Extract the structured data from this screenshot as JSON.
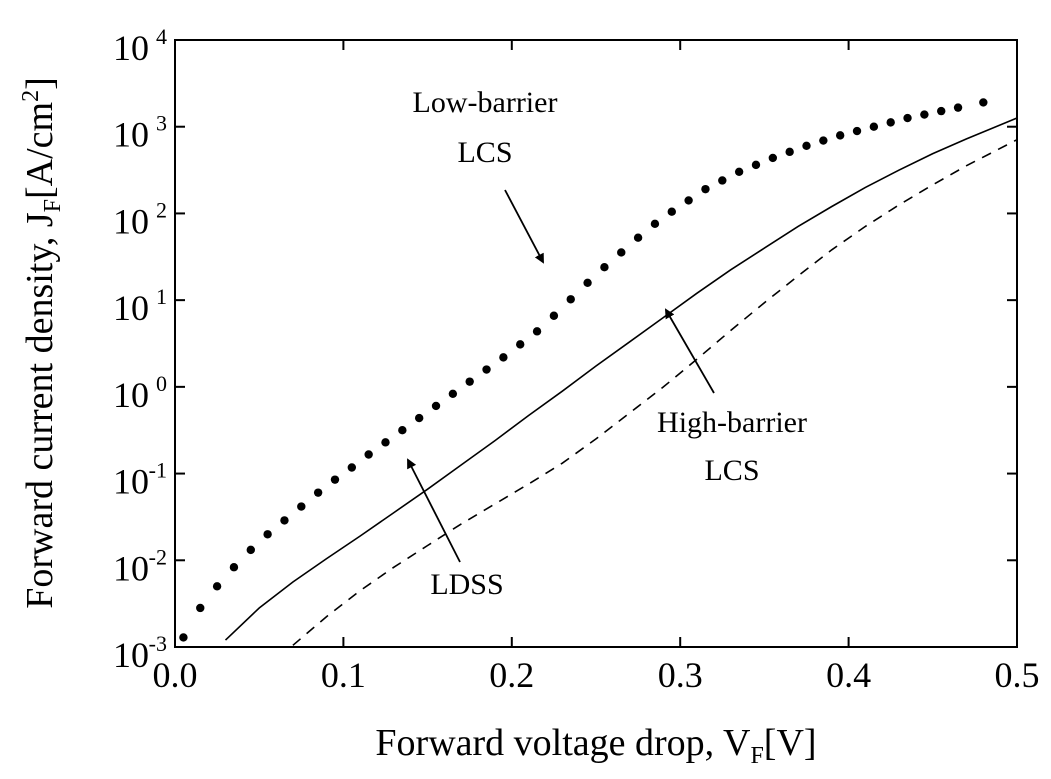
{
  "chart_data": {
    "type": "line",
    "title": "",
    "xlabel": "Forward voltage drop, V",
    "xlabel_sub": "F",
    "xlabel_unit": "[V]",
    "ylabel": "Forward current density, J",
    "ylabel_sub": "F",
    "ylabel_unit": "[A/cm",
    "ylabel_sup": "2",
    "ylabel_close": "]",
    "xlim": [
      0.0,
      0.5
    ],
    "ylim_log10": [
      -3,
      4
    ],
    "yscale": "log",
    "x_ticks": [
      "0.0",
      "0.1",
      "0.2",
      "0.3",
      "0.4",
      "0.5"
    ],
    "x_tick_values": [
      0.0,
      0.1,
      0.2,
      0.3,
      0.4,
      0.5
    ],
    "y_tick_base": "10",
    "y_tick_exponents": [
      "-3",
      "-2",
      "-1",
      "0",
      "1",
      "2",
      "3",
      "4"
    ],
    "grid": false,
    "series": [
      {
        "style": "dotted",
        "x": [
          0.005,
          0.015,
          0.025,
          0.035,
          0.045,
          0.055,
          0.065,
          0.075,
          0.085,
          0.095,
          0.105,
          0.115,
          0.125,
          0.135,
          0.145,
          0.155,
          0.165,
          0.175,
          0.185,
          0.195,
          0.205,
          0.215,
          0.225,
          0.235,
          0.245,
          0.255,
          0.265,
          0.275,
          0.285,
          0.295,
          0.305,
          0.315,
          0.325,
          0.335,
          0.345,
          0.355,
          0.365,
          0.375,
          0.385,
          0.395,
          0.405,
          0.415,
          0.425,
          0.435,
          0.445,
          0.455,
          0.465,
          0.48
        ],
        "y_log10": [
          -2.89,
          -2.55,
          -2.3,
          -2.08,
          -1.88,
          -1.7,
          -1.54,
          -1.38,
          -1.22,
          -1.07,
          -0.93,
          -0.78,
          -0.64,
          -0.5,
          -0.36,
          -0.22,
          -0.08,
          0.06,
          0.2,
          0.34,
          0.49,
          0.64,
          0.82,
          1.01,
          1.2,
          1.38,
          1.55,
          1.72,
          1.88,
          2.02,
          2.15,
          2.28,
          2.38,
          2.48,
          2.56,
          2.64,
          2.71,
          2.78,
          2.84,
          2.9,
          2.95,
          3.0,
          3.05,
          3.1,
          3.14,
          3.18,
          3.22,
          3.28
        ]
      },
      {
        "style": "solid",
        "x": [
          0.03,
          0.05,
          0.07,
          0.09,
          0.11,
          0.13,
          0.15,
          0.17,
          0.19,
          0.21,
          0.23,
          0.25,
          0.27,
          0.29,
          0.31,
          0.33,
          0.35,
          0.37,
          0.39,
          0.41,
          0.43,
          0.45,
          0.47,
          0.5
        ],
        "y_log10": [
          -2.92,
          -2.55,
          -2.25,
          -1.98,
          -1.72,
          -1.45,
          -1.18,
          -0.9,
          -0.62,
          -0.33,
          -0.05,
          0.24,
          0.52,
          0.8,
          1.08,
          1.35,
          1.6,
          1.85,
          2.08,
          2.3,
          2.5,
          2.69,
          2.86,
          3.1
        ]
      },
      {
        "style": "dashed",
        "x": [
          0.07,
          0.09,
          0.11,
          0.13,
          0.15,
          0.17,
          0.19,
          0.21,
          0.23,
          0.25,
          0.27,
          0.29,
          0.31,
          0.33,
          0.35,
          0.37,
          0.39,
          0.41,
          0.43,
          0.45,
          0.47,
          0.5
        ],
        "y_log10": [
          -2.98,
          -2.65,
          -2.35,
          -2.08,
          -1.83,
          -1.58,
          -1.35,
          -1.12,
          -0.88,
          -0.6,
          -0.3,
          0.0,
          0.32,
          0.65,
          0.97,
          1.28,
          1.58,
          1.85,
          2.1,
          2.33,
          2.55,
          2.85
        ]
      }
    ],
    "annotations": [
      {
        "lines": [
          "Low-barrier",
          "LCS"
        ],
        "target": {
          "x": 0.22,
          "y_log10": 1.43
        }
      },
      {
        "lines": [
          "High-barrier",
          "LCS"
        ],
        "target": {
          "x": 0.29,
          "y_log10": 0.96
        }
      },
      {
        "lines": [
          "LDSS"
        ],
        "target": {
          "x": 0.145,
          "y_log10": -0.84
        }
      }
    ]
  }
}
